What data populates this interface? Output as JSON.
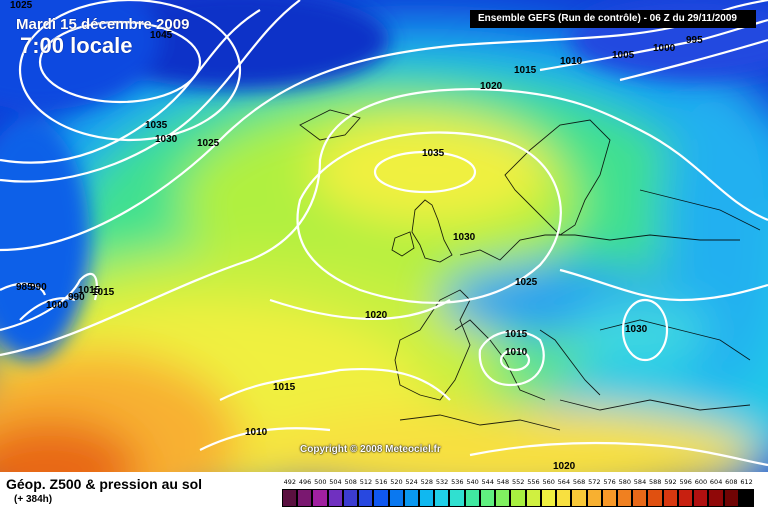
{
  "header": {
    "date": "Mardi 15 décembre 2009",
    "time": "7:00 locale",
    "model": "Ensemble GEFS (Run de contrôle)  - 06 Z du 29/11/2009"
  },
  "footer": {
    "parameter": "Géop. Z500 & pression au sol",
    "lead_time": "(+ 384h)",
    "copyright": "Copyright © 2008 Meteociel.fr"
  },
  "legend": {
    "values": [
      "492",
      "496",
      "500",
      "504",
      "508",
      "512",
      "516",
      "520",
      "524",
      "528",
      "532",
      "536",
      "540",
      "544",
      "548",
      "552",
      "556",
      "560",
      "564",
      "568",
      "572",
      "576",
      "580",
      "584",
      "588",
      "592",
      "596",
      "600",
      "604",
      "608",
      "612"
    ],
    "colors": [
      "#5a1040",
      "#7a1870",
      "#a020a0",
      "#7030c0",
      "#3c3cd0",
      "#2848e0",
      "#1058f0",
      "#0a78f0",
      "#0a98f0",
      "#10b8f0",
      "#20d0e8",
      "#30e0d0",
      "#40e8a0",
      "#60f080",
      "#80f060",
      "#a8f040",
      "#d0f040",
      "#f0f040",
      "#f8e040",
      "#f8c838",
      "#f8b030",
      "#f89828",
      "#f08020",
      "#e86818",
      "#e05010",
      "#d83810",
      "#c82010",
      "#b01010",
      "#900808",
      "#700404",
      "#000000"
    ]
  },
  "isobars": [
    "1045",
    "1035",
    "1030",
    "1025",
    "1025",
    "1020",
    "1015",
    "1010",
    "1005",
    "1000",
    "995",
    "1035",
    "1030",
    "1025",
    "1020",
    "1015",
    "1010",
    "1030",
    "1015",
    "1010",
    "1020",
    "1015",
    "1010",
    "985",
    "990",
    "990",
    "1000",
    "1015",
    "1015",
    "1020"
  ],
  "map_features": [
    "geopotential-shading",
    "isobars",
    "coastlines"
  ],
  "colors": {
    "isobar": "#ffffff",
    "coast": "#000000",
    "deep_blue": "#1030d0",
    "cyan": "#20c8e8",
    "green": "#80e860",
    "yellow": "#f0f040",
    "orange": "#f0a030",
    "red_orange": "#e86818"
  }
}
